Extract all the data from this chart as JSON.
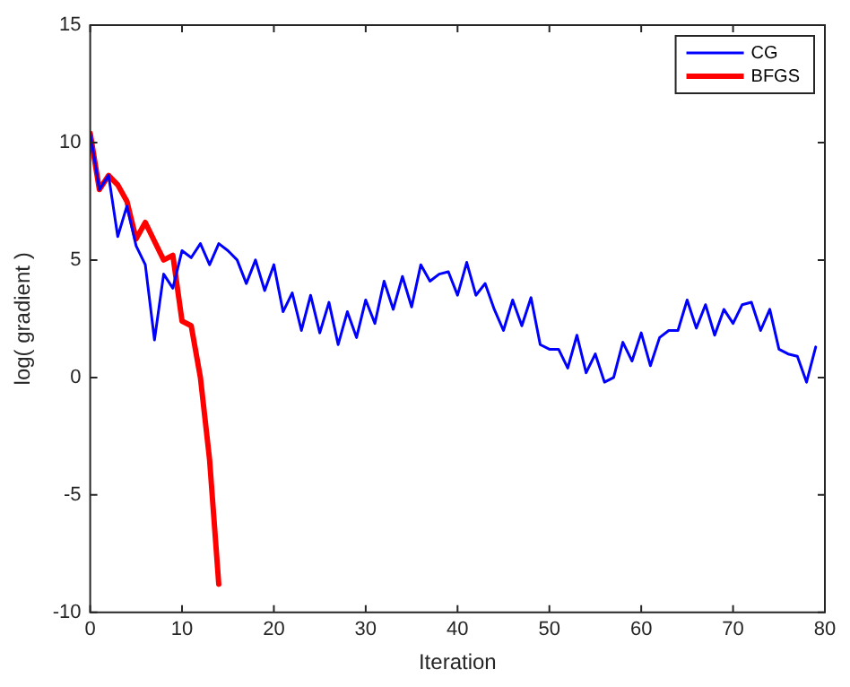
{
  "chart_data": {
    "type": "line",
    "xlabel": "Iteration",
    "ylabel": "log( gradient )",
    "xlim": [
      0,
      80
    ],
    "xticks": [
      0,
      10,
      20,
      30,
      40,
      50,
      60,
      70,
      80
    ],
    "ylim": [
      -10,
      15
    ],
    "yticks": [
      -10,
      -5,
      0,
      5,
      10,
      15
    ],
    "grid": false,
    "legend": "top right",
    "marker": "none",
    "line_style": "solid",
    "series": [
      {
        "name": "CG",
        "color": "#0000ff",
        "x": [
          0,
          1,
          2,
          3,
          4,
          5,
          6,
          7,
          8,
          9,
          10,
          11,
          12,
          13,
          14,
          15,
          16,
          17,
          18,
          19,
          20,
          21,
          22,
          23,
          24,
          25,
          26,
          27,
          28,
          29,
          30,
          31,
          32,
          33,
          34,
          35,
          36,
          37,
          38,
          39,
          40,
          41,
          42,
          43,
          44,
          45,
          46,
          47,
          48,
          49,
          50,
          51,
          52,
          53,
          54,
          55,
          56,
          57,
          58,
          59,
          60,
          61,
          62,
          63,
          64,
          65,
          66,
          67,
          68,
          69,
          70,
          71,
          72,
          73,
          74,
          75,
          76,
          77,
          78,
          79
        ],
        "values": [
          10.4,
          8.0,
          8.6,
          6.0,
          7.3,
          5.6,
          4.8,
          1.6,
          4.4,
          3.8,
          5.4,
          5.1,
          5.7,
          4.8,
          5.7,
          5.4,
          5.0,
          4.0,
          5.0,
          3.7,
          4.8,
          2.8,
          3.6,
          2.0,
          3.5,
          1.9,
          3.2,
          1.4,
          2.8,
          1.7,
          3.3,
          2.3,
          4.1,
          2.9,
          4.3,
          3.0,
          4.8,
          4.1,
          4.4,
          4.5,
          3.5,
          4.9,
          3.5,
          4.0,
          2.9,
          2.0,
          3.3,
          2.2,
          3.4,
          1.4,
          1.2,
          1.2,
          0.4,
          1.8,
          0.2,
          1.0,
          -0.2,
          0.0,
          1.5,
          0.7,
          1.9,
          0.5,
          1.7,
          2.0,
          2.0,
          3.3,
          2.1,
          3.1,
          1.8,
          2.9,
          2.3,
          3.1,
          3.2,
          2.0,
          2.9,
          1.2,
          1.0,
          0.9,
          -0.2,
          1.3
        ]
      },
      {
        "name": "BFGS",
        "color": "#ff0000",
        "x": [
          0,
          1,
          2,
          3,
          4,
          5,
          6,
          7,
          8,
          9,
          10,
          11,
          12,
          13,
          14
        ],
        "values": [
          10.4,
          8.0,
          8.6,
          8.2,
          7.5,
          5.9,
          6.6,
          5.8,
          5.0,
          5.2,
          2.4,
          2.2,
          0.0,
          -3.5,
          -8.8
        ]
      }
    ]
  }
}
